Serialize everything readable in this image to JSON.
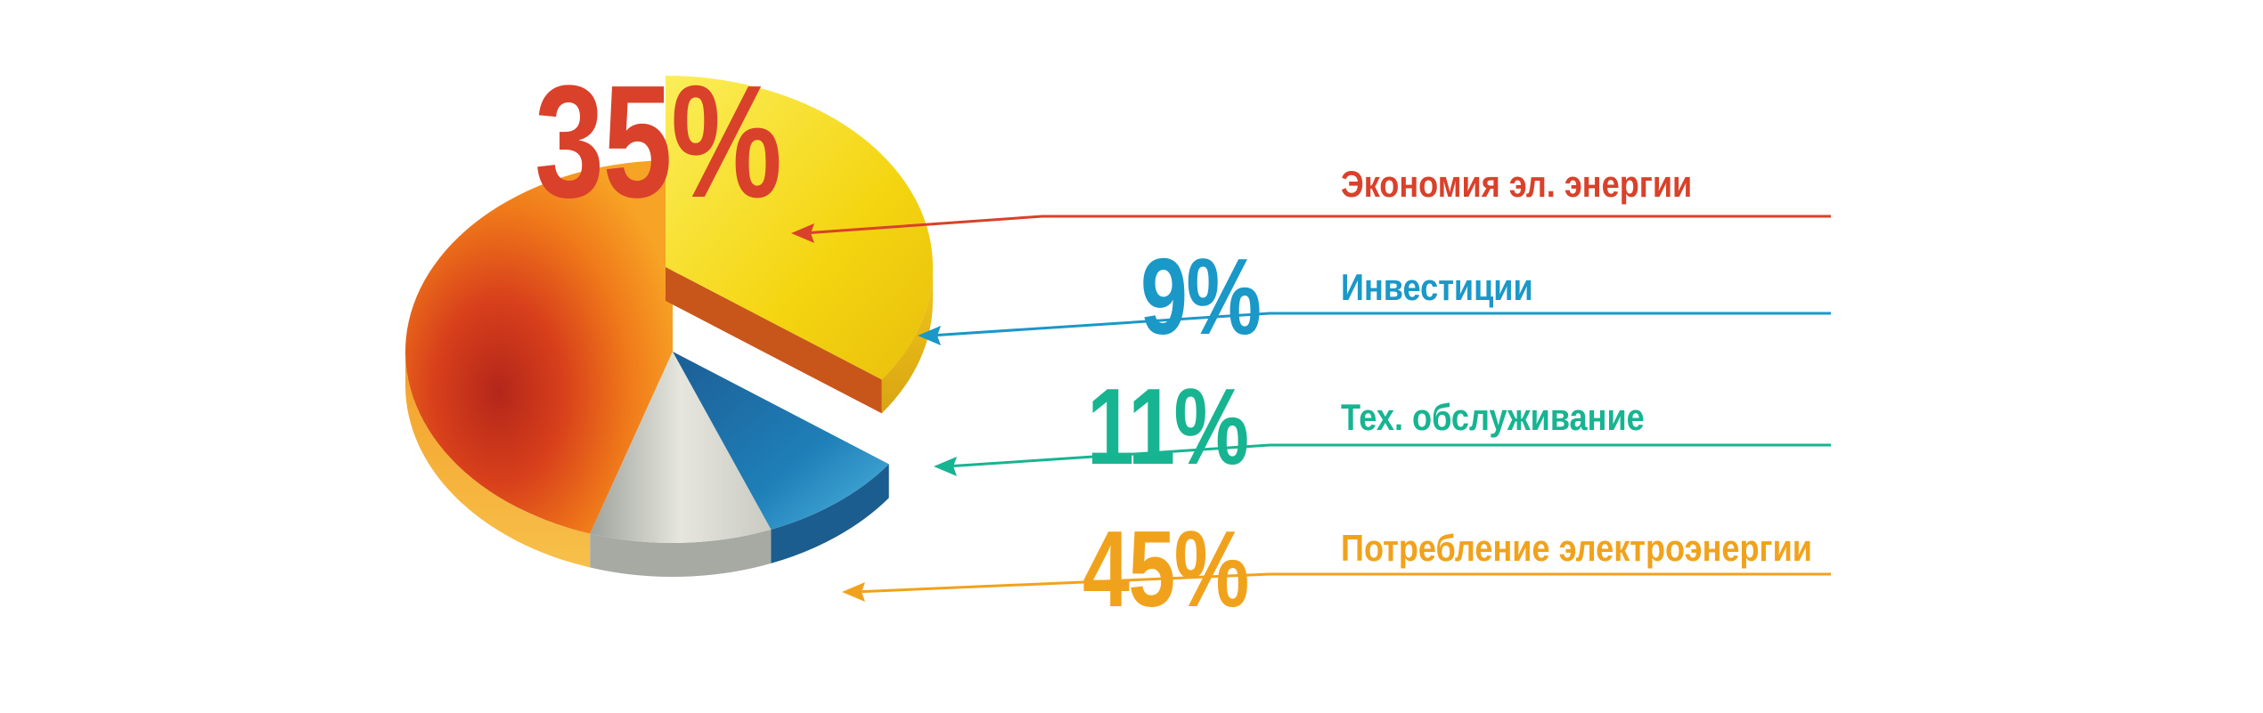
{
  "chart_data": {
    "type": "pie",
    "slices": [
      {
        "label": "Экономия эл. энергии",
        "value_label": "35%",
        "value": 35,
        "color": "#d9412a",
        "fill": "#f5d90f"
      },
      {
        "label": "Инвестиции",
        "value_label": "9%",
        "value": 9,
        "color": "#1a98c8",
        "fill": "#1d6ea3"
      },
      {
        "label": "Тех. обслуживание",
        "value_label": "11%",
        "value": 11,
        "color": "#17b491",
        "fill": "#cfcfc8"
      },
      {
        "label": "Потребление электроэнергии",
        "value_label": "45%",
        "value": 45,
        "color": "#f1a21c",
        "fill": "#e8521d"
      }
    ]
  }
}
